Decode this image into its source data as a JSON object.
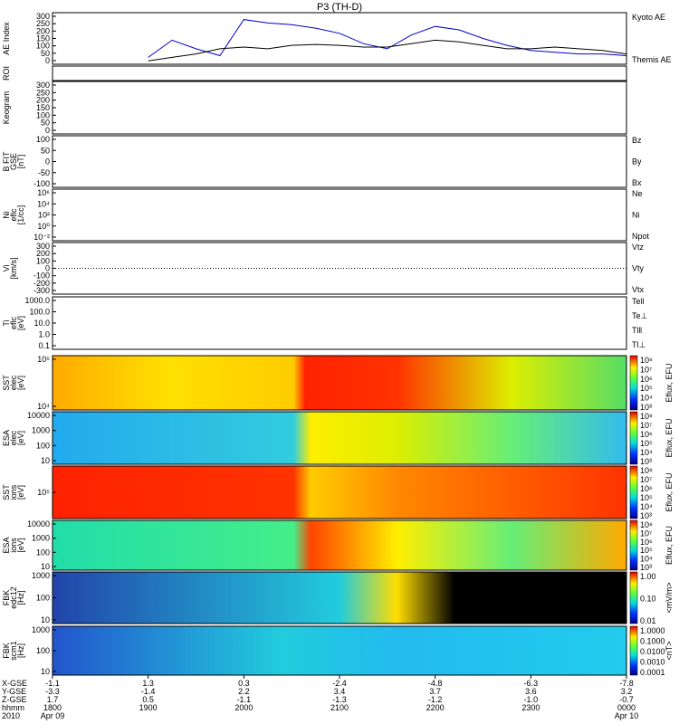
{
  "chart_data": {
    "type": "line",
    "title": "P3 (TH-D)",
    "panels": [
      {
        "id": "ae",
        "ylabel": [
          "AE Index"
        ],
        "ticks": [
          "300",
          "250",
          "200",
          "150",
          "100",
          "50",
          "0"
        ],
        "legend": [
          {
            "name": "Kyoto AE",
            "color": "#0000cc"
          },
          {
            "name": "Themis AE",
            "color": "#000000"
          }
        ],
        "x_hours": [
          19.0,
          19.25,
          19.5,
          19.75,
          20.0,
          20.25,
          20.5,
          20.75,
          21.0,
          21.25,
          21.5,
          21.75,
          22.0,
          22.25,
          22.5,
          22.75,
          23.0,
          23.25,
          23.5,
          23.75,
          24.0
        ],
        "kyoto": [
          40,
          140,
          90,
          50,
          260,
          240,
          230,
          210,
          180,
          120,
          90,
          170,
          220,
          200,
          150,
          110,
          80,
          70,
          60,
          60,
          50
        ],
        "themis": [
          20,
          40,
          60,
          90,
          100,
          90,
          110,
          115,
          110,
          100,
          100,
          120,
          140,
          130,
          110,
          90,
          90,
          100,
          90,
          80,
          60
        ]
      },
      {
        "id": "roi",
        "ylabel": [
          "ROI"
        ],
        "ticks": []
      },
      {
        "id": "keogram",
        "ylabel": [
          "Keogram"
        ],
        "ticks": [
          "300",
          "250",
          "200",
          "150",
          "100",
          "50",
          "0"
        ]
      },
      {
        "id": "bfit",
        "ylabel": [
          "B FIT",
          "GSE",
          "[nT]"
        ],
        "ticks": [
          "100",
          "50",
          "0",
          "-50",
          "-100"
        ],
        "legend": [
          {
            "name": "Bz",
            "color": "#cc0000"
          },
          {
            "name": "By",
            "color": "#00bb00"
          },
          {
            "name": "Bx",
            "color": "#0000cc"
          }
        ]
      },
      {
        "id": "ni",
        "ylabel": [
          "Ni",
          "eflc",
          "[1/cc]"
        ],
        "ticks": [
          "10⁶",
          "10⁴",
          "10²",
          "10⁰",
          "10⁻²"
        ],
        "legend": [
          {
            "name": "Ne",
            "color": "#cc0000"
          },
          {
            "name": "Ni",
            "color": "#000000"
          },
          {
            "name": "Npot",
            "color": "#0000cc"
          }
        ]
      },
      {
        "id": "vi",
        "ylabel": [
          "Vi",
          "[km/s]"
        ],
        "ticks": [
          "300",
          "200",
          "100",
          "0",
          "-100",
          "-200",
          "-300"
        ],
        "legend": [
          {
            "name": "Vtz",
            "color": "#cc0000"
          },
          {
            "name": "Vty",
            "color": "#00bb00"
          },
          {
            "name": "Vtx",
            "color": "#0000cc"
          }
        ]
      },
      {
        "id": "ti",
        "ylabel": [
          "Ti",
          "eflc",
          "[eV]"
        ],
        "ticks": [
          "1000.0",
          "100.0",
          "10.0",
          "1.0",
          "0.1"
        ],
        "legend": [
          {
            "name": "Tell",
            "color": "#000000"
          },
          {
            "name": "Te⊥",
            "color": "#cc0000"
          },
          {
            "name": "Tl‖",
            "color": "#00bb00"
          },
          {
            "name": "Tl⊥",
            "color": "#0000cc"
          }
        ]
      },
      {
        "id": "sst_e",
        "ylabel": [
          "SST",
          "elec",
          "[eV]"
        ],
        "ticks": [
          "10⁵",
          "10⁴"
        ],
        "cbar_label": "Eflux, EFU",
        "cbar_ticks": [
          "10⁸",
          "10⁷",
          "10⁶",
          "10⁵",
          "10⁴",
          "10³"
        ]
      },
      {
        "id": "esa_e",
        "ylabel": [
          "ESA",
          "elec",
          "[eV]"
        ],
        "ticks": [
          "10000",
          "1000",
          "100",
          "10"
        ],
        "cbar_label": "Eflux, EFU",
        "cbar_ticks": [
          "10⁸",
          "10⁷",
          "10⁶",
          "10⁵",
          "10⁴",
          "10³"
        ]
      },
      {
        "id": "sst_i",
        "ylabel": [
          "SST",
          "ions",
          "[eV]"
        ],
        "ticks": [
          "10⁵"
        ],
        "cbar_label": "Eflux, EFU",
        "cbar_ticks": [
          "10⁸",
          "10⁷",
          "10⁶",
          "10⁵",
          "10⁴",
          "10³"
        ]
      },
      {
        "id": "esa_i",
        "ylabel": [
          "ESA",
          "ions",
          "[eV]"
        ],
        "ticks": [
          "10000",
          "1000",
          "100",
          "10"
        ],
        "cbar_label": "Eflux, EFU",
        "cbar_ticks": [
          "10⁸",
          "10⁷",
          "10⁶",
          "10⁵",
          "10⁴",
          "10³"
        ]
      },
      {
        "id": "fbk_e",
        "ylabel": [
          "FBK",
          "edc12",
          "[Hz]"
        ],
        "ticks": [
          "1000",
          "100",
          "10"
        ],
        "cbar_label": "<mV/m>",
        "cbar_ticks": [
          "1.00",
          "0.10",
          "0.01"
        ]
      },
      {
        "id": "fbk_b",
        "ylabel": [
          "FBK",
          "scm1",
          "[Hz]"
        ],
        "ticks": [
          "1000",
          "100",
          "10"
        ],
        "cbar_label": "<nT>",
        "cbar_ticks": [
          "1.0000",
          "0.1000",
          "0.0100",
          "0.0010",
          "0.0001"
        ]
      }
    ],
    "x_axis": {
      "row_labels": [
        "X-GSE",
        "Y-GSE",
        "Z-GSE",
        "hhmm",
        "2010"
      ],
      "columns": [
        [
          "-1.1",
          "-3.3",
          "1.7",
          "1800",
          "Apr 09"
        ],
        [
          "1.3",
          "-1.4",
          "0.5",
          "1900",
          ""
        ],
        [
          "0.3",
          "2.2",
          "-1.1",
          "2000",
          ""
        ],
        [
          "-2.4",
          "3.4",
          "-1.3",
          "2100",
          ""
        ],
        [
          "-4.8",
          "3.7",
          "-1.2",
          "2200",
          ""
        ],
        [
          "-6.3",
          "3.6",
          "-1.0",
          "2300",
          ""
        ],
        [
          "-7.8",
          "3.2",
          "-0.7",
          "0000",
          "Apr 10"
        ]
      ]
    }
  }
}
